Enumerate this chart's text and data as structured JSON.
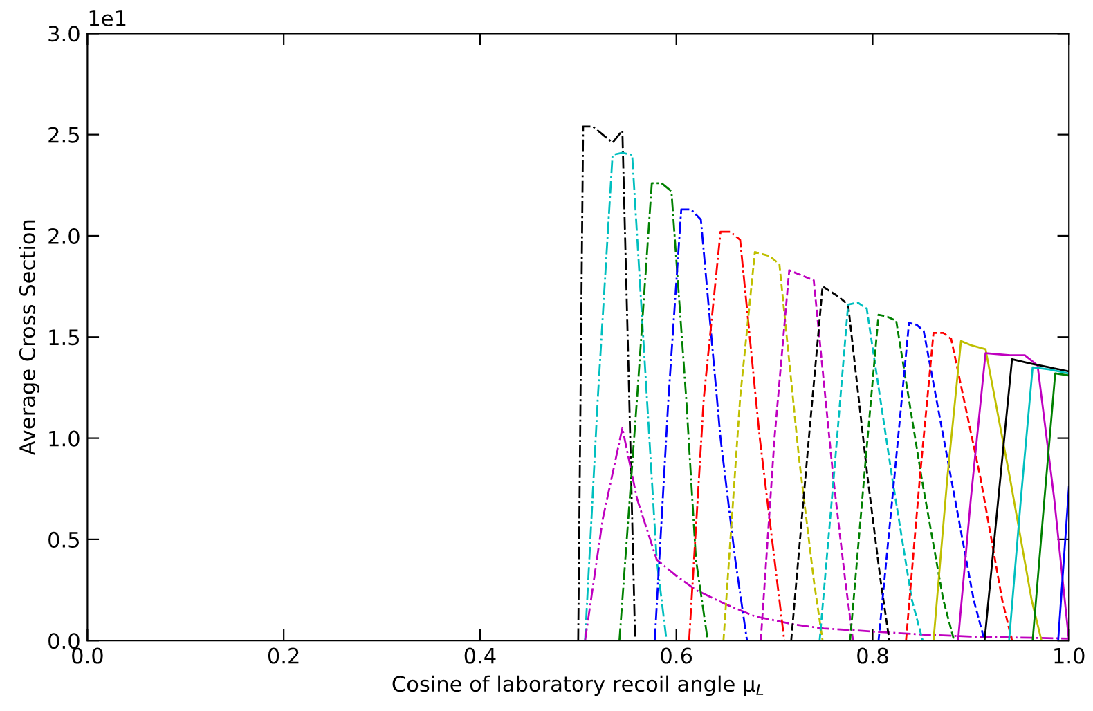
{
  "chart_data": {
    "type": "line",
    "xlabel": "Cosine of laboratory recoil angle μ$_{L}$",
    "ylabel": "Average Cross Section",
    "annotations": [
      "1e1"
    ],
    "xlim": [
      0,
      1
    ],
    "xticks": [
      {
        "value": 0,
        "label": "0.0"
      },
      0.2,
      0.4,
      0.6,
      0.8,
      {
        "value": 1,
        "label": "1.0"
      }
    ],
    "ylim": [
      0,
      3
    ],
    "yticks": [
      {
        "value": 0,
        "label": "0.0"
      },
      0.5,
      {
        "value": 1,
        "label": "1.0"
      },
      1.5,
      {
        "value": 2,
        "label": "2.0"
      },
      2.5,
      {
        "value": 3,
        "label": "3.0"
      }
    ],
    "grid": false,
    "legend": false,
    "series": [
      {
        "color": "#000000",
        "line_style": "dashdot",
        "x": [
          0.5,
          0.505,
          0.515,
          0.525,
          0.535,
          0.545,
          0.552,
          0.558
        ],
        "values": [
          0,
          2.54,
          2.54,
          2.5,
          2.46,
          2.52,
          1.2,
          0
        ]
      },
      {
        "color": "#00bfbf",
        "line_style": "dashdot",
        "x": [
          0.507,
          0.52,
          0.535,
          0.545,
          0.555,
          0.57,
          0.58,
          0.59
        ],
        "values": [
          0,
          1.2,
          2.4,
          2.41,
          2.4,
          1.2,
          0.4,
          0
        ]
      },
      {
        "color": "#bf00bf",
        "line_style": "dashdot",
        "x": [
          0.507,
          0.525,
          0.545,
          0.56,
          0.58,
          0.6,
          0.62,
          0.65,
          0.68,
          0.72,
          0.75,
          0.8,
          0.85,
          0.9,
          0.95,
          1.0
        ],
        "values": [
          0,
          0.6,
          1.05,
          0.7,
          0.4,
          0.32,
          0.25,
          0.18,
          0.12,
          0.08,
          0.06,
          0.045,
          0.03,
          0.02,
          0.015,
          0.01
        ]
      },
      {
        "color": "#008000",
        "line_style": "dashdot",
        "x": [
          0.542,
          0.56,
          0.575,
          0.585,
          0.595,
          0.61,
          0.62,
          0.632
        ],
        "values": [
          0,
          1.2,
          2.26,
          2.26,
          2.22,
          1.2,
          0.4,
          0
        ]
      },
      {
        "color": "#0000ff",
        "line_style": "dashdot",
        "x": [
          0.578,
          0.592,
          0.605,
          0.615,
          0.625,
          0.645,
          0.66,
          0.672
        ],
        "values": [
          0,
          1.2,
          2.13,
          2.13,
          2.08,
          1.0,
          0.4,
          0
        ]
      },
      {
        "color": "#ff0000",
        "line_style": "dashdot",
        "x": [
          0.613,
          0.628,
          0.645,
          0.655,
          0.665,
          0.685,
          0.7,
          0.71
        ],
        "values": [
          0,
          1.2,
          2.02,
          2.02,
          1.98,
          1.0,
          0.4,
          0
        ]
      },
      {
        "color": "#bfbf00",
        "line_style": "dashed",
        "x": [
          0.648,
          0.665,
          0.68,
          0.695,
          0.705,
          0.725,
          0.74,
          0.749
        ],
        "values": [
          0,
          1.2,
          1.92,
          1.9,
          1.86,
          0.9,
          0.3,
          0
        ]
      },
      {
        "color": "#bf00bf",
        "line_style": "dashed",
        "x": [
          0.686,
          0.7,
          0.715,
          0.73,
          0.74,
          0.76,
          0.772,
          0.78
        ],
        "values": [
          0,
          1.0,
          1.83,
          1.8,
          1.78,
          0.8,
          0.3,
          0
        ]
      },
      {
        "color": "#000000",
        "line_style": "dashed",
        "x": [
          0.717,
          0.735,
          0.749,
          0.765,
          0.775,
          0.795,
          0.808,
          0.817
        ],
        "values": [
          0,
          1.0,
          1.75,
          1.7,
          1.66,
          0.8,
          0.3,
          0
        ]
      },
      {
        "color": "#00bfbf",
        "line_style": "dashed",
        "x": [
          0.746,
          0.762,
          0.775,
          0.785,
          0.794,
          0.82,
          0.84,
          0.851
        ],
        "values": [
          0,
          0.9,
          1.66,
          1.67,
          1.64,
          0.8,
          0.2,
          0
        ]
      },
      {
        "color": "#008000",
        "line_style": "dashed",
        "x": [
          0.777,
          0.793,
          0.806,
          0.815,
          0.824,
          0.85,
          0.872,
          0.883
        ],
        "values": [
          0,
          0.9,
          1.61,
          1.6,
          1.58,
          0.8,
          0.2,
          0
        ]
      },
      {
        "color": "#0000ff",
        "line_style": "dashed",
        "x": [
          0.806,
          0.822,
          0.837,
          0.845,
          0.852,
          0.88,
          0.903,
          0.914
        ],
        "values": [
          0,
          0.8,
          1.57,
          1.56,
          1.53,
          0.8,
          0.2,
          0
        ]
      },
      {
        "color": "#ff0000",
        "line_style": "dashed",
        "x": [
          0.834,
          0.848,
          0.862,
          0.872,
          0.88,
          0.91,
          0.932,
          0.942
        ],
        "values": [
          0,
          0.8,
          1.52,
          1.52,
          1.49,
          0.8,
          0.2,
          0
        ]
      },
      {
        "color": "#bfbf00",
        "line_style": "solid",
        "x": [
          0.862,
          0.876,
          0.89,
          0.9,
          0.915,
          0.94,
          0.962,
          0.972
        ],
        "values": [
          0,
          0.8,
          1.48,
          1.46,
          1.44,
          0.8,
          0.2,
          0
        ]
      },
      {
        "color": "#bf00bf",
        "line_style": "solid",
        "x": [
          0.887,
          0.9,
          0.915,
          0.94,
          0.955,
          0.968,
          0.985,
          1.0
        ],
        "values": [
          0,
          0.7,
          1.42,
          1.41,
          1.41,
          1.36,
          0.7,
          0
        ]
      },
      {
        "color": "#000000",
        "line_style": "solid",
        "x": [
          0.914,
          0.928,
          0.942,
          0.96,
          0.98,
          1.0
        ],
        "values": [
          0,
          0.7,
          1.39,
          1.37,
          1.35,
          1.33
        ]
      },
      {
        "color": "#00bfbf",
        "line_style": "solid",
        "x": [
          0.939,
          0.951,
          0.963,
          0.98,
          1.0
        ],
        "values": [
          0,
          0.7,
          1.35,
          1.34,
          1.32
        ]
      },
      {
        "color": "#008000",
        "line_style": "solid",
        "x": [
          0.963,
          0.975,
          0.986,
          1.0
        ],
        "values": [
          0,
          0.7,
          1.32,
          1.31
        ]
      },
      {
        "color": "#0000ff",
        "line_style": "solid",
        "x": [
          0.989,
          1.0
        ],
        "values": [
          0,
          0.76
        ]
      }
    ]
  }
}
